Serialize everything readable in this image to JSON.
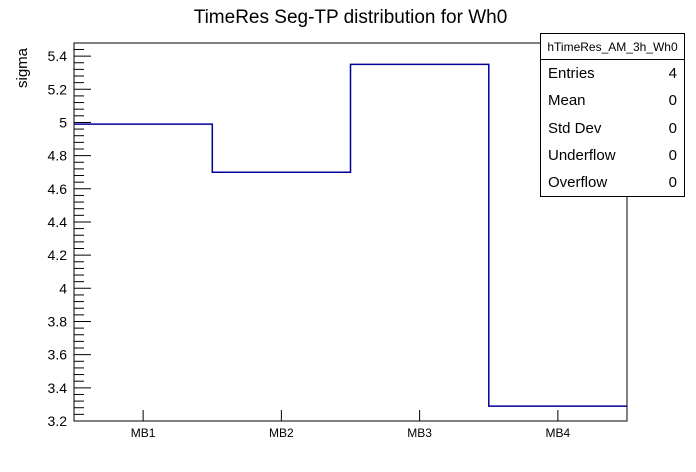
{
  "title": "TimeRes Seg-TP distribution for Wh0",
  "chart_data": {
    "type": "step-histogram",
    "title": "TimeRes Seg-TP distribution for Wh0",
    "xlabel": "",
    "ylabel": "sigma",
    "categories": [
      "MB1",
      "MB2",
      "MB3",
      "MB4"
    ],
    "values": [
      4.99,
      4.7,
      5.35,
      3.29
    ],
    "ylim": [
      3.2,
      5.479
    ],
    "y_major_ticks": [
      3.2,
      3.4,
      3.6,
      3.8,
      4.0,
      4.2,
      4.4,
      4.6,
      4.8,
      5.0,
      5.2,
      5.4
    ],
    "y_tick_labels": [
      "3.2",
      "3.4",
      "3.6",
      "3.8",
      "4",
      "4.2",
      "4.4",
      "4.6",
      "4.8",
      "5",
      "5.2",
      "5.4"
    ],
    "y_minor_step": 0.04,
    "grid": false,
    "legend": "none",
    "line_color": "#000099",
    "frame_color": "#000000"
  },
  "stats_box": {
    "header": "hTimeRes_AM_3h_Wh0",
    "rows": [
      {
        "label": "Entries",
        "value": "4"
      },
      {
        "label": "Mean",
        "value": "0"
      },
      {
        "label": "Std Dev",
        "value": "0"
      },
      {
        "label": "Underflow",
        "value": "0"
      },
      {
        "label": "Overflow",
        "value": "0"
      }
    ]
  }
}
